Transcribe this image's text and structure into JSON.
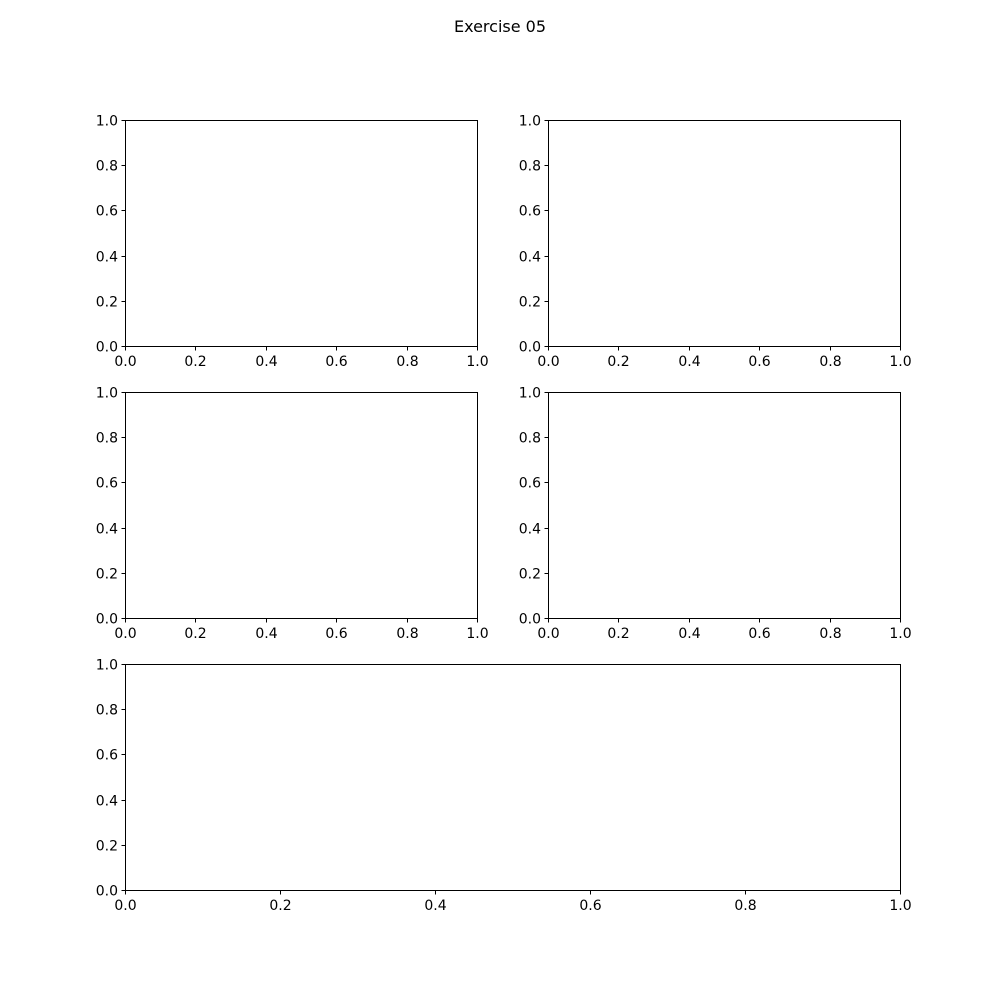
{
  "figure": {
    "suptitle": "Exercise 05"
  },
  "chart_data": [
    {
      "type": "line",
      "title": "",
      "xlabel": "",
      "ylabel": "",
      "xlim": [
        0.0,
        1.0
      ],
      "ylim": [
        0.0,
        1.0
      ],
      "x_ticks": [
        "0.0",
        "0.2",
        "0.4",
        "0.6",
        "0.8",
        "1.0"
      ],
      "y_ticks": [
        "0.0",
        "0.2",
        "0.4",
        "0.6",
        "0.8",
        "1.0"
      ],
      "series": [],
      "grid": false
    },
    {
      "type": "line",
      "title": "",
      "xlabel": "",
      "ylabel": "",
      "xlim": [
        0.0,
        1.0
      ],
      "ylim": [
        0.0,
        1.0
      ],
      "x_ticks": [
        "0.0",
        "0.2",
        "0.4",
        "0.6",
        "0.8",
        "1.0"
      ],
      "y_ticks": [
        "0.0",
        "0.2",
        "0.4",
        "0.6",
        "0.8",
        "1.0"
      ],
      "series": [],
      "grid": false
    },
    {
      "type": "line",
      "title": "",
      "xlabel": "",
      "ylabel": "",
      "xlim": [
        0.0,
        1.0
      ],
      "ylim": [
        0.0,
        1.0
      ],
      "x_ticks": [
        "0.0",
        "0.2",
        "0.4",
        "0.6",
        "0.8",
        "1.0"
      ],
      "y_ticks": [
        "0.0",
        "0.2",
        "0.4",
        "0.6",
        "0.8",
        "1.0"
      ],
      "series": [],
      "grid": false
    },
    {
      "type": "line",
      "title": "",
      "xlabel": "",
      "ylabel": "",
      "xlim": [
        0.0,
        1.0
      ],
      "ylim": [
        0.0,
        1.0
      ],
      "x_ticks": [
        "0.0",
        "0.2",
        "0.4",
        "0.6",
        "0.8",
        "1.0"
      ],
      "y_ticks": [
        "0.0",
        "0.2",
        "0.4",
        "0.6",
        "0.8",
        "1.0"
      ],
      "series": [],
      "grid": false
    },
    {
      "type": "line",
      "title": "",
      "xlabel": "",
      "ylabel": "",
      "xlim": [
        0.0,
        1.0
      ],
      "ylim": [
        0.0,
        1.0
      ],
      "x_ticks": [
        "0.0",
        "0.2",
        "0.4",
        "0.6",
        "0.8",
        "1.0"
      ],
      "y_ticks": [
        "0.0",
        "0.2",
        "0.4",
        "0.6",
        "0.8",
        "1.0"
      ],
      "series": [],
      "grid": false
    }
  ]
}
